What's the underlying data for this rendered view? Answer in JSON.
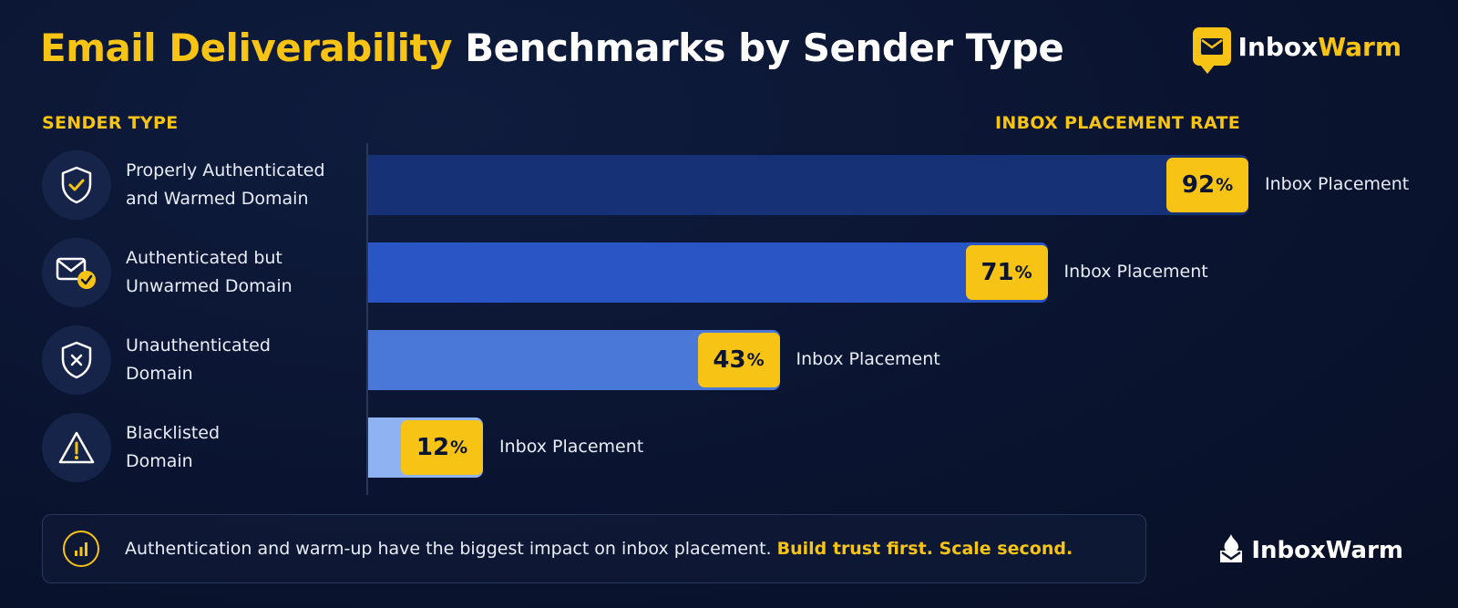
{
  "title": {
    "highlight": "Email Deliverability",
    "rest": " Benchmarks by Sender Type"
  },
  "brand": {
    "top_text_part1": "Inbox",
    "top_text_part2": "Warm",
    "bottom_text": "InboxWarm"
  },
  "colors": {
    "background": "#0b1530",
    "accent": "#f7c315",
    "bar_1": "#163175",
    "bar_2": "#2a55c4",
    "bar_3": "#4a78d8",
    "bar_4": "#8fb2f2"
  },
  "chart_data": {
    "type": "bar",
    "orientation": "horizontal",
    "category_header": "SENDER TYPE",
    "value_header": "INBOX PLACEMENT RATE",
    "categories": [
      "Properly Authenticated and Warmed Domain",
      "Authenticated but Unwarmed Domain",
      "Unauthenticated Domain",
      "Blacklisted Domain"
    ],
    "category_lines": [
      [
        "Properly Authenticated",
        "and Warmed Domain"
      ],
      [
        "Authenticated but",
        "Unwarmed Domain"
      ],
      [
        "Unauthenticated",
        "Domain"
      ],
      [
        "Blacklisted",
        "Domain"
      ]
    ],
    "icons": [
      "shield-check-icon",
      "mail-check-icon",
      "shield-x-icon",
      "warning-icon"
    ],
    "values": [
      92,
      71,
      43,
      12
    ],
    "value_labels": [
      "92",
      "71",
      "43",
      "12"
    ],
    "unit": "%",
    "bar_note": "Inbox Placement",
    "xlim": [
      0,
      100
    ]
  },
  "footer": {
    "text": "Authentication and warm-up have the biggest impact on inbox placement. ",
    "highlight": "Build trust first. Scale second."
  }
}
